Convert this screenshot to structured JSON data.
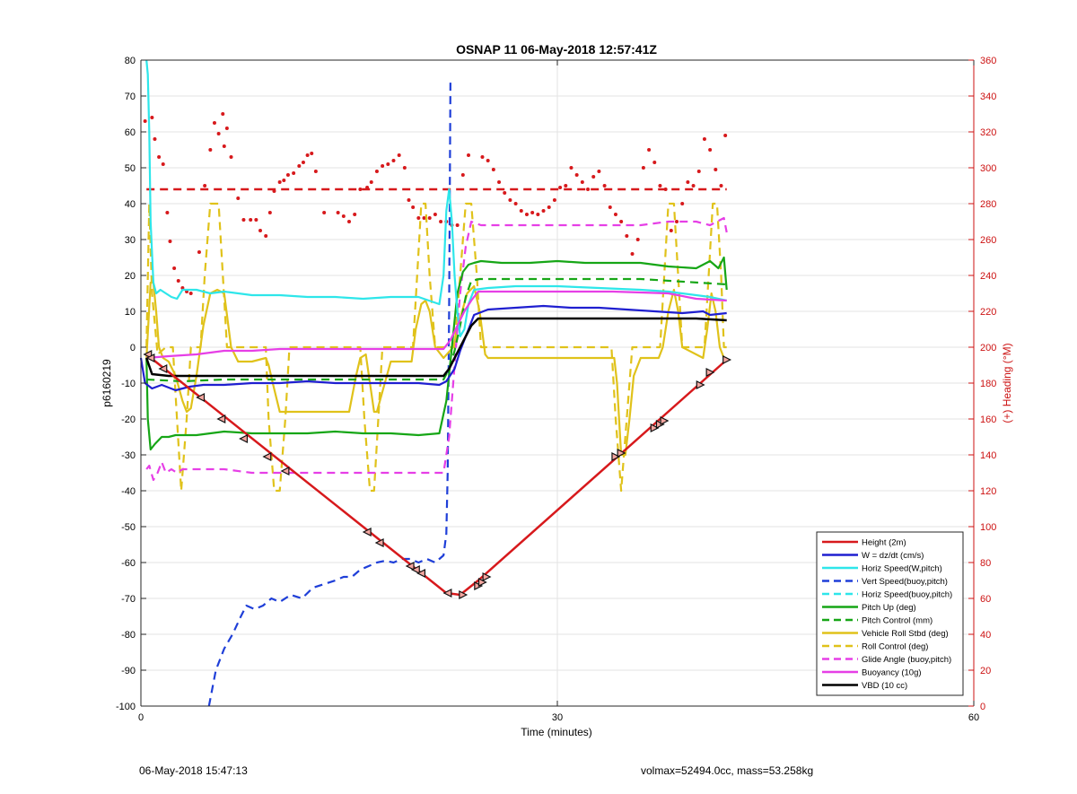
{
  "colors": {
    "height": "#d7191c",
    "w": "#1f1fd0",
    "horiz_w": "#2ee6ea",
    "vert_buoy": "#1f3fd8",
    "horiz_buoy": "#2ee6ea",
    "pitch": "#16a616",
    "pitch_ctl": "#16a616",
    "roll": "#e0c21a",
    "roll_ctl": "#e0c21a",
    "glide": "#e63fe6",
    "buoy": "#e63fe6",
    "vbd": "#000000",
    "heading": "#d7191c",
    "right_axis": "#cc1111"
  },
  "chart_data": {
    "type": "line",
    "title": "OSNAP 11 06-May-2018 12:57:41Z",
    "xlabel": "Time (minutes)",
    "ylabel": "p6160219",
    "y2label": "(+) Heading (°M)",
    "xlim": [
      0,
      60
    ],
    "ylim": [
      -100,
      80
    ],
    "y2lim": [
      0,
      360
    ],
    "xticks": [
      0,
      30,
      60
    ],
    "yticks": [
      -100,
      -90,
      -80,
      -70,
      -60,
      -50,
      -40,
      -30,
      -20,
      -10,
      0,
      10,
      20,
      30,
      40,
      50,
      60,
      70,
      80
    ],
    "y2ticks": [
      0,
      20,
      40,
      60,
      80,
      100,
      120,
      140,
      160,
      180,
      200,
      220,
      240,
      260,
      280,
      300,
      320,
      340,
      360
    ],
    "grid": true,
    "legend_position": "bottom-right",
    "legend": [
      "Height (2m)",
      "W = dz/dt (cm/s)",
      "Horiz Speed(W,pitch)",
      "Vert Speed(buoy,pitch)",
      "Horiz Speed(buoy,pitch)",
      "Pitch Up (deg)",
      "Pitch Control (mm)",
      "Vehicle Roll Stbd (deg)",
      "Roll Control (deg)",
      "Glide Angle (buoy,pitch)",
      "Buoyancy (10g)",
      "VBD (10 cc)"
    ],
    "series": [
      {
        "name": "Height (2m)",
        "style": "solid",
        "color": "height",
        "x": [
          0.4,
          22,
          23,
          24.3,
          42.2
        ],
        "y": [
          -2,
          -68.5,
          -69,
          -65,
          -3.5
        ]
      },
      {
        "name": "Height markers",
        "style": "markers",
        "color": "height",
        "x": [
          0.5,
          0.7,
          1.6,
          4.3,
          5.8,
          7.4,
          9.1,
          10.4,
          16.3,
          17.2,
          19.4,
          19.8,
          20.2,
          22.1,
          23.2,
          24.3,
          24.6,
          24.9,
          34.2,
          34.6,
          37,
          37.4,
          37.7,
          40.3,
          41,
          42.2
        ],
        "y": [
          -2,
          -3,
          -6,
          -14,
          -20,
          -25.5,
          -30.5,
          -34.5,
          -51.5,
          -54.5,
          -61,
          -62,
          -63,
          -68.5,
          -69,
          -66.5,
          -65.5,
          -64,
          -30.5,
          -29.5,
          -22.5,
          -21.5,
          -20.5,
          -10.5,
          -7,
          -3.5
        ]
      },
      {
        "name": "W = dz/dt (cm/s)",
        "style": "solid",
        "color": "w",
        "x": [
          0,
          0.3,
          0.8,
          1.5,
          2.5,
          3.5,
          4.5,
          6,
          8,
          10,
          12,
          14,
          16,
          18,
          20,
          21.5,
          22,
          22.6,
          23,
          23.5,
          24,
          25,
          27,
          29,
          31,
          33,
          35,
          37,
          39,
          40.5,
          41,
          42.2
        ],
        "y": [
          -3,
          -10,
          -11.5,
          -10.5,
          -12,
          -11,
          -10.5,
          -10.5,
          -10,
          -10,
          -9.5,
          -10,
          -10,
          -10,
          -10,
          -10.5,
          -9.5,
          -6,
          -1,
          4,
          9,
          10.5,
          11,
          11.5,
          11,
          11,
          10.5,
          10,
          9.5,
          10,
          9,
          9.5
        ]
      },
      {
        "name": "Horiz Speed(W,pitch)",
        "style": "solid",
        "color": "horiz_w",
        "x": [
          0.4,
          0.5,
          0.6,
          0.7,
          0.9,
          1.1,
          1.4,
          1.8,
          2.2,
          2.6,
          3,
          4,
          5,
          6,
          8,
          10,
          12,
          14,
          16,
          18,
          20,
          21.5,
          21.8,
          22,
          22.2,
          22.4,
          22.6,
          22.8,
          23,
          23.3,
          23.6,
          24,
          25,
          27,
          30,
          33,
          36,
          38,
          40,
          41,
          42.2
        ],
        "y": [
          80,
          76,
          60,
          35,
          18,
          15,
          16,
          15,
          14,
          13.5,
          16,
          16,
          15,
          15.5,
          14.5,
          14.5,
          14,
          14,
          13.5,
          14,
          14,
          12,
          20,
          38,
          44,
          35,
          20,
          10,
          3,
          5,
          12,
          16,
          16.5,
          17,
          17,
          16.5,
          16,
          15.5,
          14.5,
          14,
          13
        ]
      },
      {
        "name": "Vert Speed(buoy,pitch)",
        "style": "dashed",
        "color": "vert_buoy",
        "x": [
          4.9,
          5.4,
          6,
          6.6,
          7.2,
          7.6,
          8.2,
          8.8,
          9.4,
          10,
          10.8,
          11.6,
          12.4,
          13.2,
          14,
          14.6,
          15.2,
          15.8,
          16.4,
          17,
          17.6,
          18.2,
          18.8,
          19.4,
          20,
          20.6,
          21.2,
          21.8,
          22,
          22.1,
          22.2,
          22.3
        ],
        "y": [
          -100,
          -90,
          -84,
          -80,
          -75,
          -72,
          -73,
          -72,
          -70,
          -71,
          -69,
          -70,
          -67,
          -66,
          -65,
          -64,
          -64,
          -62,
          -61,
          -60,
          -59.5,
          -60,
          -59,
          -59,
          -60,
          -59,
          -60,
          -58,
          -52,
          -35,
          10,
          75
        ]
      },
      {
        "name": "Pitch Up (deg)",
        "style": "solid",
        "color": "pitch",
        "x": [
          0.4,
          0.5,
          0.7,
          1,
          1.5,
          2,
          2.5,
          3,
          4,
          5,
          6,
          8,
          10,
          12,
          14,
          16,
          18,
          20,
          21.5,
          22,
          22.4,
          22.8,
          23.2,
          23.6,
          24,
          24.5,
          26,
          28,
          30,
          32,
          34,
          36,
          38,
          40,
          41,
          41.6,
          42,
          42.2
        ],
        "y": [
          -3,
          -20,
          -28.5,
          -27,
          -25,
          -25,
          -24.5,
          -24.5,
          -24.5,
          -24,
          -23.5,
          -24,
          -24,
          -24,
          -23.5,
          -24,
          -24,
          -24.5,
          -24,
          -15,
          0,
          15,
          21,
          23,
          23.5,
          24,
          23.5,
          23.5,
          24,
          23.5,
          23.5,
          23.5,
          22.5,
          22,
          24,
          22,
          25,
          16
        ]
      },
      {
        "name": "Pitch Control (mm)",
        "style": "dashed",
        "color": "pitch_ctl",
        "x": [
          0.4,
          3,
          6,
          10,
          14,
          18,
          21.8,
          22.2,
          22.6,
          23,
          23.4,
          23.8,
          24.4,
          30,
          36,
          42.2
        ],
        "y": [
          -9,
          -9.5,
          -9,
          -9,
          -9,
          -9,
          -9,
          -6,
          -1,
          6,
          14,
          18.5,
          19,
          19,
          19,
          17.5
        ]
      },
      {
        "name": "Vehicle Roll Stbd (deg)",
        "style": "solid",
        "color": "roll",
        "x": [
          0.4,
          0.7,
          0.9,
          1.1,
          1.3,
          1.6,
          2,
          2.5,
          3,
          3.3,
          3.6,
          4,
          4.5,
          5,
          5.5,
          6,
          6.5,
          7,
          8,
          9,
          9.2,
          9.5,
          10,
          10.5,
          11,
          14,
          15,
          15.5,
          15.8,
          16.2,
          16.5,
          16.8,
          17,
          18,
          19.5,
          19.8,
          20.2,
          20.5,
          20.8,
          21.2,
          21.8,
          22.5,
          23,
          23.5,
          24,
          24.4,
          24.8,
          25,
          26,
          27,
          30,
          33,
          34.1,
          34.3,
          34.6,
          34.9,
          35.2,
          35.5,
          36,
          37.3,
          37.6,
          38,
          38.4,
          38.7,
          39,
          40.5,
          40.8,
          41.1,
          41.4,
          41.7,
          42,
          42.2
        ],
        "y": [
          -3,
          18,
          18,
          10,
          0,
          -3,
          -4,
          -8,
          -15,
          -18,
          -17,
          -8,
          6,
          15,
          16,
          15,
          0,
          -4,
          -4,
          -3,
          -5,
          -10,
          -18,
          -18,
          -18,
          -18,
          -18,
          -8,
          -3,
          -2,
          -10,
          -18,
          -18,
          -4,
          -4,
          5,
          12,
          13,
          10,
          0,
          -3,
          0,
          8,
          15,
          17,
          10,
          -2,
          -3,
          -3,
          -3,
          -3,
          -3,
          -3,
          -10,
          -30,
          -30,
          -20,
          -8,
          -3,
          -3,
          0,
          10,
          16,
          10,
          0,
          -3,
          5,
          15,
          10,
          0,
          -3,
          -3
        ]
      },
      {
        "name": "Roll Control (deg)",
        "style": "dashed",
        "color": "roll_ctl",
        "x": [
          0.4,
          0.6,
          0.8,
          1.2,
          1.8,
          2.3,
          2.6,
          2.9,
          3.3,
          3.6,
          3.9,
          4.3,
          4.6,
          5,
          5.3,
          5.6,
          5.9,
          6.2,
          6.6,
          7,
          8,
          9,
          9.2,
          9.6,
          10,
          10.4,
          10.7,
          11,
          14,
          15.8,
          16.1,
          16.5,
          16.8,
          17.1,
          17.4,
          19.6,
          19.9,
          20.2,
          20.5,
          20.8,
          21.2,
          21.6,
          22,
          22.6,
          23,
          23.4,
          23.8,
          24.2,
          24.5,
          25,
          30,
          33.9,
          34.2,
          34.6,
          35,
          35.4,
          35.8,
          37.4,
          37.7,
          38,
          38.4,
          38.7,
          39,
          40.6,
          40.9,
          41.2,
          41.5,
          41.8,
          42,
          42.2
        ],
        "y": [
          0,
          40,
          15,
          -2,
          0,
          0,
          -20,
          -40,
          -20,
          0,
          0,
          0,
          20,
          40,
          40,
          40,
          20,
          0,
          0,
          0,
          0,
          0,
          -20,
          -40,
          -40,
          -20,
          0,
          0,
          0,
          0,
          -20,
          -40,
          -40,
          -20,
          0,
          0,
          20,
          40,
          40,
          20,
          0,
          0,
          0,
          0,
          20,
          40,
          40,
          20,
          0,
          0,
          0,
          0,
          -20,
          -40,
          -20,
          0,
          0,
          0,
          20,
          40,
          40,
          20,
          0,
          0,
          20,
          40,
          40,
          20,
          0,
          0
        ]
      },
      {
        "name": "Glide Angle (buoy,pitch)",
        "style": "dashed",
        "color": "glide",
        "x": [
          0.4,
          0.6,
          0.9,
          1.2,
          1.5,
          1.8,
          2.2,
          2.6,
          3,
          4,
          6,
          8,
          10,
          14,
          18,
          20,
          21.8,
          22.2,
          22.6,
          23,
          23.4,
          23.8,
          24.5,
          26,
          28,
          30,
          32,
          34,
          36,
          38,
          40,
          41,
          42,
          42.2
        ],
        "y": [
          -34,
          -33,
          -37,
          -35,
          -32,
          -35,
          -34,
          -35,
          -34,
          -34,
          -34,
          -35,
          -35,
          -35,
          -35,
          -35,
          -35,
          -25,
          -5,
          15,
          28,
          35,
          34,
          34,
          34,
          34,
          34,
          34,
          34,
          35,
          35,
          34,
          36,
          32
        ]
      },
      {
        "name": "Buoyancy (10g)",
        "style": "solid",
        "color": "buoy",
        "x": [
          0.4,
          2,
          4,
          6,
          8,
          10,
          14,
          18,
          21.8,
          22.3,
          22.8,
          23.3,
          23.8,
          24.3,
          26,
          30,
          34,
          38,
          40,
          42.2
        ],
        "y": [
          -3,
          -2.5,
          -2,
          -1,
          -1,
          -0.5,
          -0.5,
          -0.5,
          -0.5,
          2,
          6,
          10,
          13,
          15.5,
          15.5,
          15.5,
          15.5,
          15,
          13.5,
          13
        ]
      },
      {
        "name": "VBD (10 cc)",
        "style": "solid",
        "color": "vbd",
        "x": [
          0.4,
          0.8,
          2,
          6,
          10,
          14,
          18,
          21.8,
          22.2,
          22.6,
          23,
          23.4,
          23.8,
          24.3,
          26,
          30,
          34,
          38,
          40,
          42.2
        ],
        "y": [
          -3,
          -7.5,
          -8,
          -8,
          -8,
          -8,
          -8,
          -8,
          -6,
          -3,
          0,
          3,
          6,
          8,
          8,
          8,
          8,
          8,
          8,
          7.5
        ]
      }
    ],
    "heading_target": {
      "name": "heading target",
      "style": "dashed",
      "color": "heading",
      "x": [
        0.4,
        42.2
      ],
      "y": [
        288,
        288
      ]
    },
    "heading_dots": {
      "color": "heading",
      "x": [
        0.3,
        0.8,
        1,
        1.3,
        1.6,
        1.9,
        2.1,
        2.4,
        2.7,
        3,
        3.3,
        3.6,
        4.2,
        4.6,
        5,
        5.3,
        5.6,
        5.9,
        6,
        6.2,
        6.5,
        7,
        7.4,
        7.9,
        8.3,
        8.6,
        9,
        9.3,
        9.6,
        10,
        10.3,
        10.6,
        11,
        11.4,
        11.7,
        12,
        12.3,
        12.6,
        13.2,
        14.2,
        14.6,
        15,
        15.4,
        15.8,
        16.3,
        16.6,
        17,
        17.4,
        17.8,
        18.2,
        18.6,
        19,
        19.3,
        19.6,
        20,
        20.4,
        20.8,
        21.2,
        21.6,
        22,
        22.4,
        22.8,
        23.2,
        23.6,
        24.6,
        25,
        25.4,
        25.8,
        26.2,
        26.6,
        27,
        27.4,
        27.8,
        28.2,
        28.6,
        29,
        29.4,
        29.8,
        30.2,
        30.6,
        31,
        31.4,
        31.8,
        32.2,
        32.6,
        33,
        33.4,
        33.8,
        34.2,
        34.6,
        35,
        35.4,
        35.8,
        36.2,
        36.6,
        37,
        37.4,
        37.8,
        38.2,
        38.6,
        39,
        39.4,
        39.8,
        40.2,
        40.6,
        41,
        41.4,
        41.8,
        42.1
      ],
      "y": [
        326,
        328,
        316,
        306,
        302,
        275,
        259,
        244,
        237,
        233,
        231,
        230,
        253,
        290,
        310,
        325,
        319,
        330,
        312,
        322,
        306,
        283,
        271,
        271,
        271,
        265,
        262,
        275,
        287,
        292,
        293,
        296,
        297,
        301,
        303,
        307,
        308,
        298,
        275,
        275,
        273,
        270,
        274,
        288,
        289,
        292,
        298,
        301,
        302,
        304,
        307,
        300,
        282,
        278,
        272,
        272,
        272,
        274,
        270,
        270,
        268,
        268,
        296,
        307,
        306,
        304,
        299,
        292,
        286,
        282,
        280,
        276,
        274,
        275,
        274,
        276,
        278,
        282,
        289,
        290,
        300,
        296,
        292,
        288,
        295,
        298,
        290,
        278,
        274,
        270,
        262,
        252,
        260,
        300,
        310,
        303,
        290,
        288,
        265,
        270,
        280,
        292,
        290,
        298,
        316,
        310,
        299,
        290,
        318
      ]
    }
  },
  "footer": {
    "left": "06-May-2018 15:47:13",
    "right": "volmax=52494.0cc, mass=53.258kg"
  }
}
